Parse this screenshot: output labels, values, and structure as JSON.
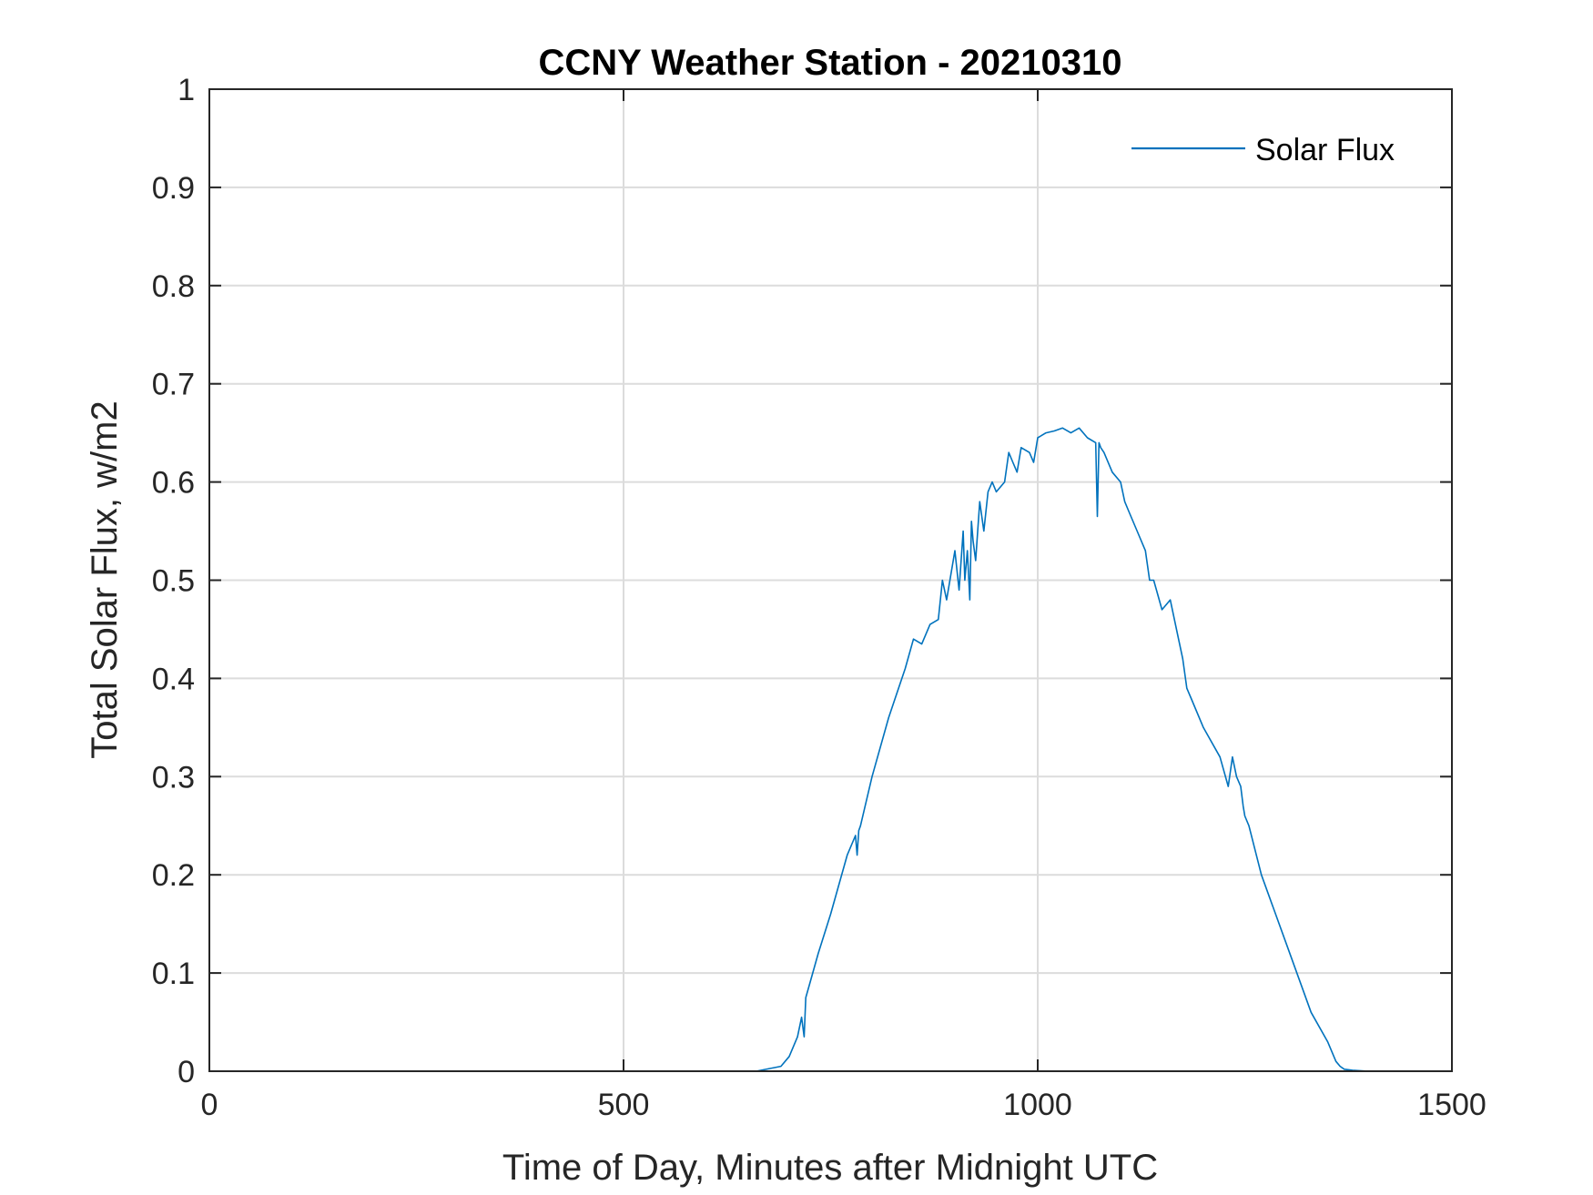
{
  "chart_data": {
    "type": "line",
    "title": "CCNY Weather Station - 20210310",
    "xlabel": "Time of Day, Minutes after Midnight UTC",
    "ylabel": "Total Solar Flux, w/m2",
    "xlim": [
      0,
      1500
    ],
    "ylim": [
      0,
      1
    ],
    "xticks": [
      0,
      500,
      1000,
      1500
    ],
    "xtick_labels": [
      "0",
      "500",
      "1000",
      "1500"
    ],
    "yticks": [
      0,
      0.1,
      0.2,
      0.3,
      0.4,
      0.5,
      0.6,
      0.7,
      0.8,
      0.9,
      1
    ],
    "ytick_labels": [
      "0",
      "0.1",
      "0.2",
      "0.3",
      "0.4",
      "0.5",
      "0.6",
      "0.7",
      "0.8",
      "0.9",
      "1"
    ],
    "grid": true,
    "legend_position": "top-right",
    "line_color": "#0072bd",
    "series": [
      {
        "name": "Solar Flux",
        "x": [
          0,
          300,
          600,
          660,
          690,
          700,
          710,
          715,
          718,
          720,
          725,
          735,
          750,
          770,
          780,
          782,
          784,
          786,
          800,
          820,
          840,
          850,
          860,
          870,
          880,
          885,
          890,
          900,
          905,
          910,
          912,
          915,
          918,
          920,
          922,
          925,
          930,
          935,
          940,
          945,
          950,
          960,
          965,
          970,
          975,
          980,
          990,
          995,
          1000,
          1010,
          1020,
          1030,
          1040,
          1050,
          1060,
          1070,
          1072,
          1074,
          1076,
          1080,
          1090,
          1100,
          1105,
          1110,
          1120,
          1130,
          1135,
          1140,
          1150,
          1160,
          1170,
          1175,
          1180,
          1185,
          1200,
          1220,
          1230,
          1235,
          1240,
          1245,
          1248,
          1250,
          1255,
          1270,
          1300,
          1330,
          1350,
          1360,
          1365,
          1370,
          1380,
          1400,
          1450,
          1500
        ],
        "y": [
          0,
          0,
          0,
          0,
          0.005,
          0.015,
          0.035,
          0.055,
          0.035,
          0.075,
          0.09,
          0.12,
          0.16,
          0.22,
          0.24,
          0.22,
          0.245,
          0.25,
          0.3,
          0.36,
          0.41,
          0.44,
          0.435,
          0.455,
          0.46,
          0.5,
          0.48,
          0.53,
          0.49,
          0.55,
          0.5,
          0.53,
          0.48,
          0.56,
          0.54,
          0.52,
          0.58,
          0.55,
          0.59,
          0.6,
          0.59,
          0.6,
          0.63,
          0.62,
          0.61,
          0.635,
          0.63,
          0.62,
          0.645,
          0.65,
          0.652,
          0.655,
          0.65,
          0.655,
          0.645,
          0.64,
          0.565,
          0.64,
          0.635,
          0.63,
          0.61,
          0.6,
          0.58,
          0.57,
          0.55,
          0.53,
          0.5,
          0.5,
          0.47,
          0.48,
          0.44,
          0.42,
          0.39,
          0.38,
          0.35,
          0.32,
          0.29,
          0.32,
          0.3,
          0.29,
          0.27,
          0.26,
          0.25,
          0.2,
          0.13,
          0.06,
          0.03,
          0.01,
          0.005,
          0.002,
          0.001,
          0,
          0,
          0
        ]
      }
    ]
  }
}
